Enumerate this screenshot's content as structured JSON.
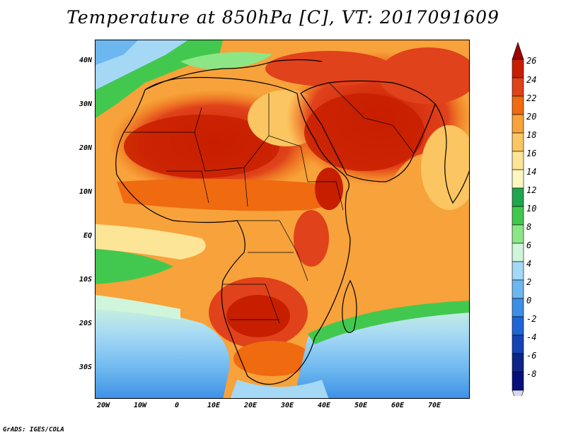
{
  "title": "Temperature at 850hPa [C], VT: 2017091609",
  "credit": "GrADS: IGES/COLA",
  "latitude_labels": [
    "40N",
    "30N",
    "20N",
    "10N",
    "EQ",
    "10S",
    "20S",
    "30S"
  ],
  "longitude_labels": [
    "20W",
    "10W",
    "0",
    "10E",
    "20E",
    "30E",
    "40E",
    "50E",
    "60E",
    "70E"
  ],
  "colorbar": {
    "labels": [
      "26",
      "24",
      "22",
      "20",
      "18",
      "16",
      "14",
      "12",
      "10",
      "8",
      "6",
      "4",
      "2",
      "0",
      "-2",
      "-4",
      "-6",
      "-8"
    ],
    "colors": [
      "#a00000",
      "#c81e00",
      "#e0421b",
      "#f06a10",
      "#f7a23a",
      "#fbc561",
      "#fde597",
      "#fff7c0",
      "#1fa64e",
      "#43c84f",
      "#8de686",
      "#cff5da",
      "#a4d8f5",
      "#6cb7ef",
      "#3c8fe6",
      "#1f65d8",
      "#1543b6",
      "#0c2587",
      "#06107a",
      "#d9d6f5"
    ]
  },
  "map_extent": {
    "lon": [
      -22,
      80
    ],
    "lat": [
      -37,
      45
    ]
  }
}
